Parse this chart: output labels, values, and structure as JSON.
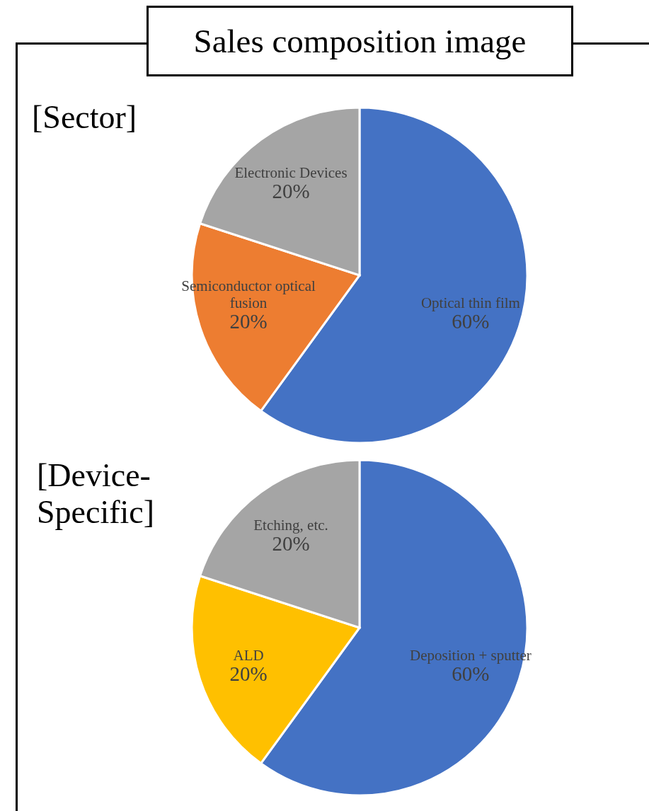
{
  "chart_data": [
    {
      "type": "pie",
      "title": "Sales composition image",
      "subtitle": "[Sector]",
      "categories": [
        "Optical thin film",
        "Semiconductor optical fusion",
        "Electronic Devices"
      ],
      "values": [
        60,
        20,
        20
      ],
      "value_labels": [
        "60%",
        "20%",
        "20%"
      ],
      "colors": [
        "#4472c4",
        "#ed7d31",
        "#a5a5a5"
      ]
    },
    {
      "type": "pie",
      "title": "[Device-Specific]",
      "categories": [
        "Deposition + sputter",
        "ALD",
        "Etching, etc."
      ],
      "values": [
        60,
        20,
        20
      ],
      "value_labels": [
        "60%",
        "20%",
        "20%"
      ],
      "colors": [
        "#4472c4",
        "#ffc000",
        "#a5a5a5"
      ]
    }
  ]
}
